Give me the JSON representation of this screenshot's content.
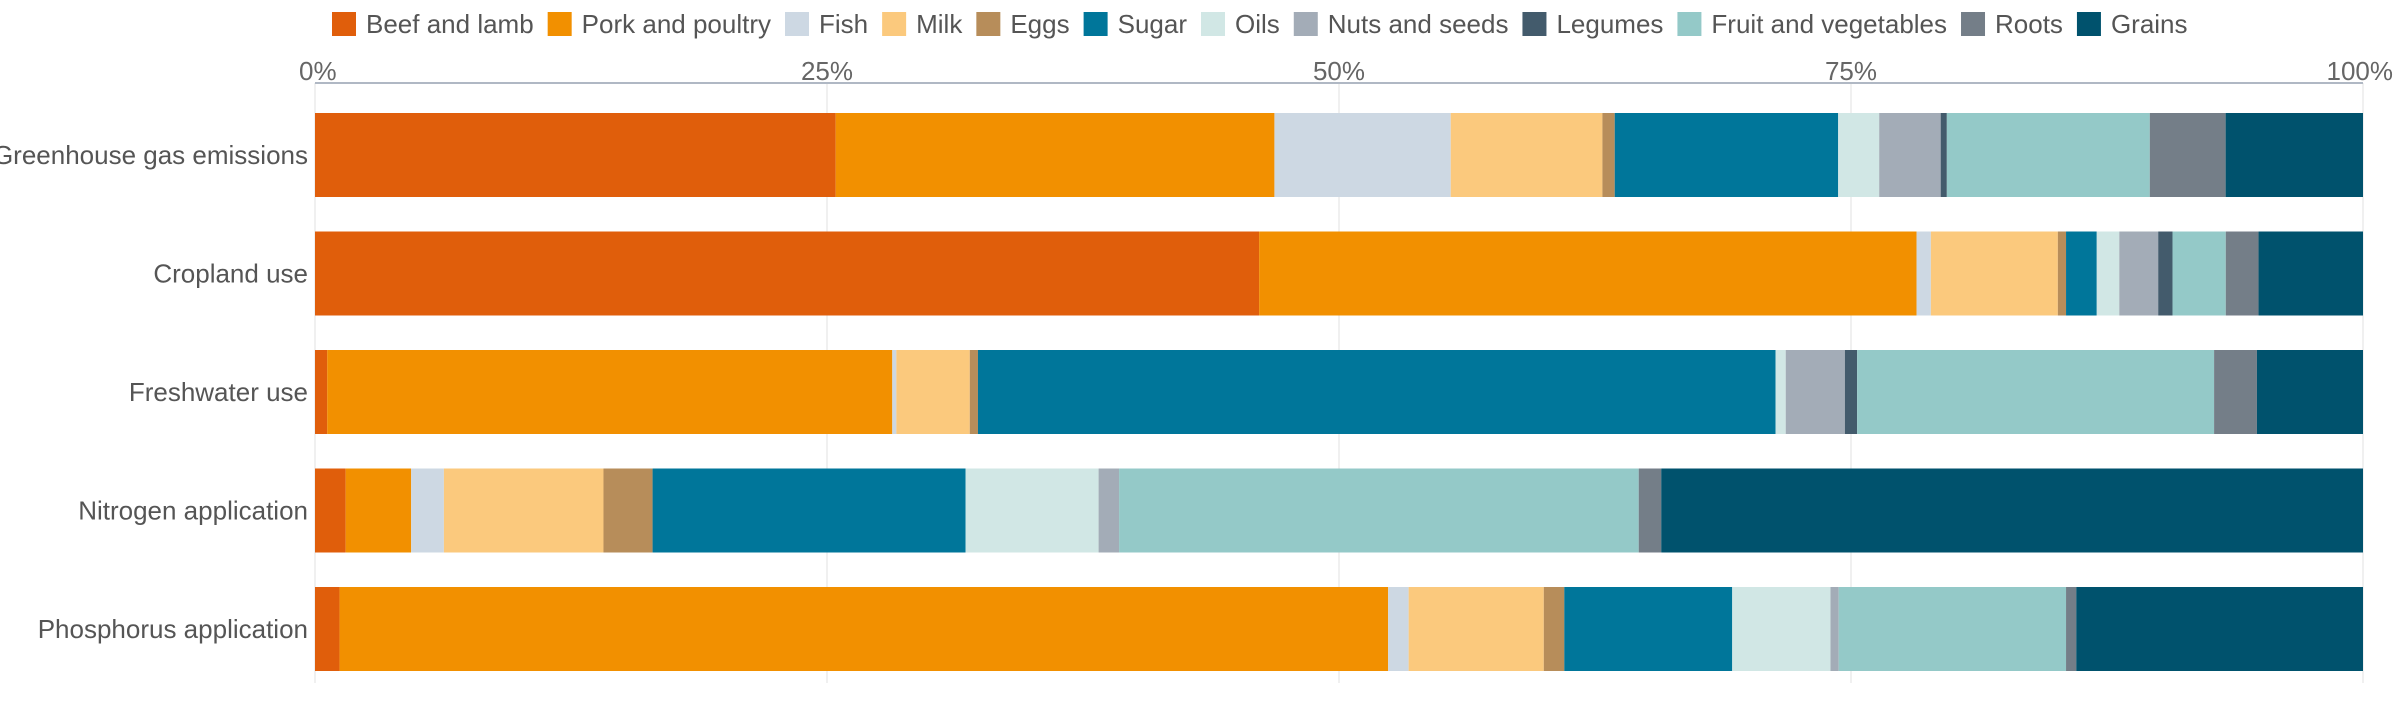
{
  "chart_data": {
    "type": "bar",
    "orientation": "horizontal",
    "stacked": true,
    "normalized": true,
    "title": "",
    "xlabel": "",
    "ylabel": "",
    "xlim": [
      0,
      100
    ],
    "x_ticks": [
      "0%",
      "25%",
      "50%",
      "75%",
      "100%"
    ],
    "grid": true,
    "legend_position": "top",
    "categories": [
      "Greenhouse gas emissions",
      "Cropland use",
      "Freshwater use",
      "Nitrogen application",
      "Phosphorus application"
    ],
    "series": [
      {
        "name": "Beef and lamb",
        "color": "#e05e0b",
        "values": [
          25.4,
          46.1,
          0.6,
          1.5,
          1.2
        ]
      },
      {
        "name": "Pork and poultry",
        "color": "#f29000",
        "values": [
          21.4,
          32.1,
          27.7,
          3.2,
          51.2
        ]
      },
      {
        "name": "Fish",
        "color": "#cdd8e3",
        "values": [
          8.6,
          0.7,
          0.2,
          1.6,
          1.0
        ]
      },
      {
        "name": "Milk",
        "color": "#fbc97d",
        "values": [
          7.4,
          6.2,
          3.6,
          7.8,
          6.6
        ]
      },
      {
        "name": "Eggs",
        "color": "#b78d5a",
        "values": [
          0.6,
          0.4,
          0.4,
          2.4,
          1.0
        ]
      },
      {
        "name": "Sugar",
        "color": "#00769a",
        "values": [
          10.9,
          1.5,
          39.1,
          15.3,
          8.2
        ]
      },
      {
        "name": "Oils",
        "color": "#d1e7e5",
        "values": [
          2.0,
          1.1,
          0.5,
          6.5,
          4.8
        ]
      },
      {
        "name": "Nuts and seeds",
        "color": "#a3acb7",
        "values": [
          3.0,
          1.9,
          2.9,
          1.0,
          0.4
        ]
      },
      {
        "name": "Legumes",
        "color": "#435b6c",
        "values": [
          0.3,
          0.7,
          0.6,
          0.0,
          0.0
        ]
      },
      {
        "name": "Fruit and vegetables",
        "color": "#94c9c8",
        "values": [
          9.9,
          2.6,
          17.5,
          25.4,
          11.1
        ]
      },
      {
        "name": "Roots",
        "color": "#747e88",
        "values": [
          3.7,
          1.6,
          2.1,
          1.1,
          0.5
        ]
      },
      {
        "name": "Grains",
        "color": "#00526d",
        "values": [
          6.7,
          5.1,
          5.2,
          34.3,
          14.0
        ]
      }
    ]
  }
}
